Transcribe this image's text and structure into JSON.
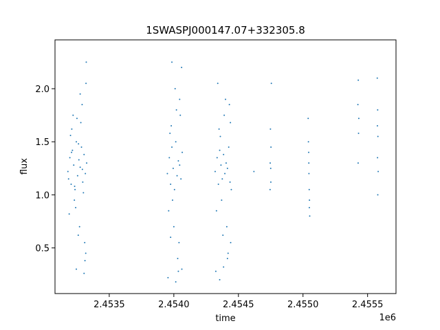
{
  "chart_data": {
    "type": "scatter",
    "title": "1SWASPJ000147.07+332305.8",
    "xlabel": "time",
    "ylabel": "flux",
    "x_offset_label": "1e6",
    "xlim": [
      2453080,
      2455720
    ],
    "ylim": [
      0.07,
      2.46
    ],
    "x_ticks": [
      2453500,
      2454000,
      2454500,
      2455000,
      2455500
    ],
    "x_tick_labels": [
      "2.4535",
      "2.4540",
      "2.4545",
      "2.4550",
      "2.4555"
    ],
    "y_ticks": [
      0.5,
      1.0,
      1.5,
      2.0
    ],
    "y_tick_labels": [
      "0.5",
      "1.0",
      "1.5",
      "2.0"
    ],
    "grid": false,
    "point_color": "#1f77b4",
    "series": [
      {
        "x": [
          2453180,
          2453195,
          2453205,
          2453215,
          2453225,
          2453235,
          2453245,
          2453255,
          2453265,
          2453275,
          2453285,
          2453295,
          2453305,
          2453315,
          2453325,
          2453190,
          2453210,
          2453230,
          2453250,
          2453270,
          2453290,
          2453310,
          2453320,
          2453200,
          2453240,
          2453280,
          2453300,
          2453260,
          2453220,
          2453318,
          2453185,
          2453208,
          2453232,
          2453262,
          2453292,
          2453312,
          2453322,
          2453245,
          2453275,
          2453305,
          2453950,
          2453965,
          2453975,
          2453985,
          2453995,
          2454005,
          2454015,
          2454025,
          2454035,
          2454045,
          2454055,
          2454065,
          2453960,
          2453980,
          2454000,
          2454020,
          2454040,
          2454060,
          2453970,
          2453990,
          2454010,
          2454030,
          2454050,
          2454062,
          2453955,
          2453985,
          2454015,
          2454045,
          2453975,
          2454035,
          2454320,
          2454335,
          2454345,
          2454355,
          2454365,
          2454375,
          2454385,
          2454395,
          2454405,
          2454415,
          2454425,
          2454435,
          2454445,
          2454330,
          2454350,
          2454370,
          2454390,
          2454410,
          2454430,
          2454440,
          2454340,
          2454360,
          2454380,
          2454400,
          2454420,
          2454438,
          2454325,
          2454385,
          2454415,
          2454355,
          2454620,
          2454745,
          2454750,
          2454752,
          2454748,
          2454755,
          2454746,
          2454751,
          2455040,
          2455042,
          2455045,
          2455048,
          2455050,
          2455052,
          2455046,
          2455044,
          2455049,
          2455425,
          2455428,
          2455430,
          2455427,
          2455432,
          2455575,
          2455578,
          2455580,
          2455577,
          2455582,
          2455579,
          2455576
        ],
        "y": [
          1.22,
          1.35,
          1.1,
          1.42,
          1.28,
          1.05,
          1.5,
          1.18,
          1.33,
          1.26,
          1.45,
          1.12,
          1.38,
          1.2,
          1.3,
          0.82,
          1.62,
          0.95,
          1.72,
          0.7,
          1.85,
          0.55,
          2.05,
          1.56,
          0.88,
          1.68,
          1.02,
          0.62,
          1.75,
          0.45,
          1.15,
          1.4,
          1.08,
          1.48,
          1.24,
          0.38,
          2.25,
          0.3,
          1.95,
          0.26,
          1.2,
          1.35,
          1.1,
          1.45,
          1.25,
          1.05,
          1.5,
          1.18,
          1.32,
          1.28,
          1.15,
          1.4,
          0.85,
          1.65,
          0.7,
          1.8,
          0.55,
          2.2,
          1.58,
          0.95,
          2.0,
          0.4,
          1.75,
          0.3,
          0.22,
          2.25,
          0.18,
          1.9,
          0.6,
          0.28,
          1.22,
          1.35,
          1.1,
          1.42,
          1.28,
          1.15,
          1.38,
          1.2,
          1.3,
          1.25,
          1.45,
          1.12,
          1.05,
          0.85,
          1.62,
          0.95,
          1.75,
          0.7,
          1.85,
          0.55,
          2.05,
          1.55,
          0.62,
          1.9,
          0.45,
          1.68,
          0.28,
          0.32,
          0.4,
          0.2,
          1.22,
          1.05,
          1.25,
          1.45,
          1.62,
          2.05,
          1.3,
          1.12,
          1.72,
          1.5,
          1.3,
          1.05,
          0.95,
          0.8,
          1.2,
          1.4,
          0.88,
          1.85,
          2.08,
          1.58,
          1.3,
          1.72,
          2.1,
          1.8,
          1.55,
          1.35,
          1.22,
          1.0,
          1.65
        ]
      }
    ]
  }
}
